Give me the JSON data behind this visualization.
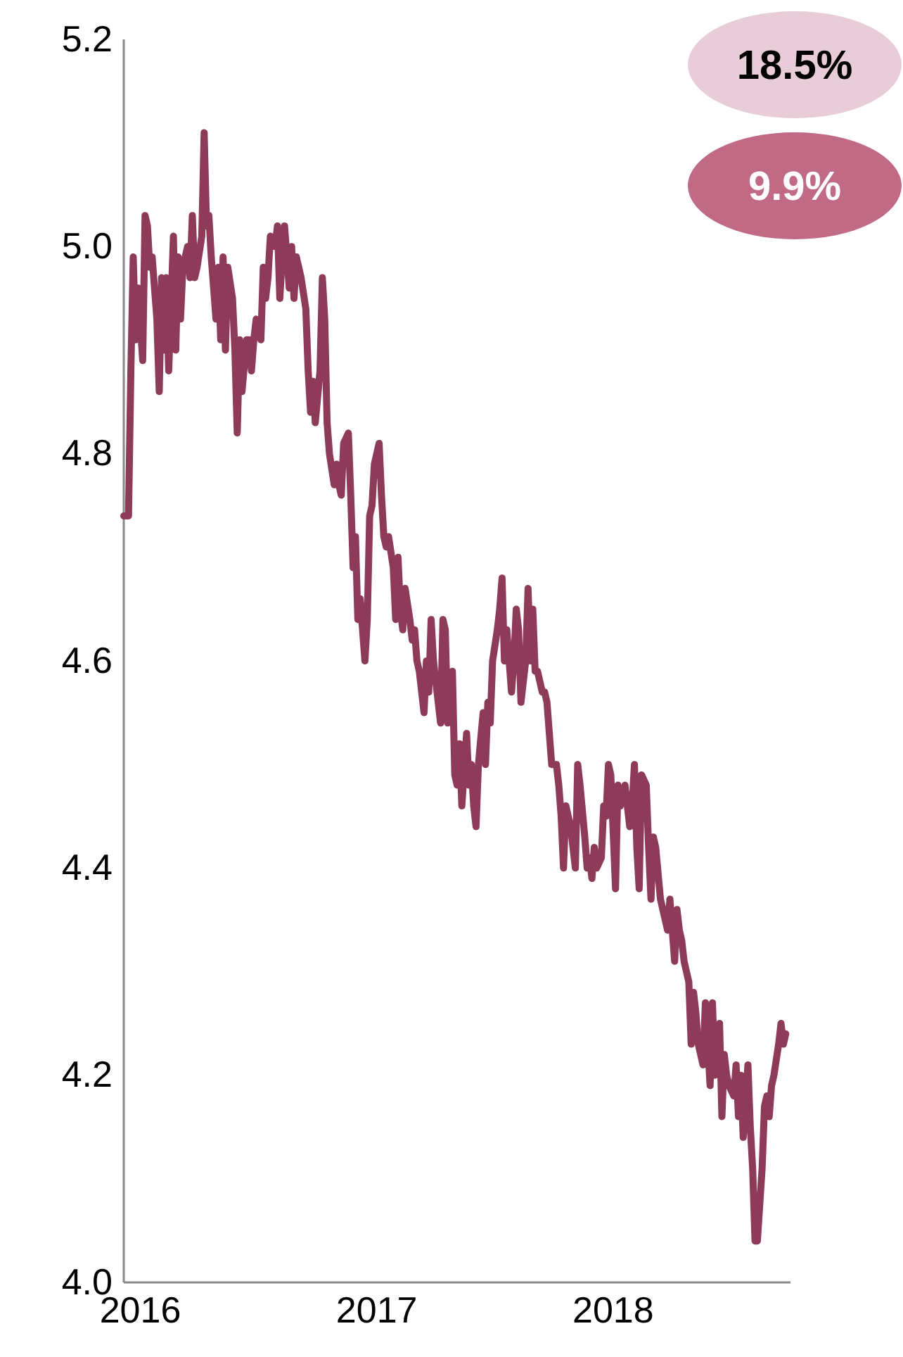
{
  "chart_data": {
    "type": "line",
    "xlim": [
      2015.93,
      2018.75
    ],
    "xticks": [
      2016,
      2017,
      2018
    ],
    "ylim": [
      4.0,
      5.2
    ],
    "yticks": [
      {
        "value": 4.0,
        "label": "4.0"
      },
      {
        "value": 4.2,
        "label": "4.2"
      },
      {
        "value": 4.4,
        "label": "4.4"
      },
      {
        "value": 4.6,
        "label": "4.6"
      },
      {
        "value": 4.8,
        "label": "4.8"
      },
      {
        "value": 5.0,
        "label": "5.0"
      },
      {
        "value": 5.2,
        "label": "5.2"
      }
    ],
    "grid": false,
    "marker": "none",
    "line_style": "solid",
    "annotations": [
      "18.5%",
      "9.9%"
    ],
    "series": [
      {
        "color": "#8e3b5a",
        "x": [
          2015.93,
          2015.95,
          2015.96,
          2015.97,
          2015.98,
          2015.99,
          2016.01,
          2016.02,
          2016.03,
          2016.04,
          2016.05,
          2016.07,
          2016.08,
          2016.09,
          2016.1,
          2016.11,
          2016.12,
          2016.14,
          2016.15,
          2016.16,
          2016.17,
          2016.18,
          2016.2,
          2016.21,
          2016.22,
          2016.23,
          2016.24,
          2016.26,
          2016.27,
          2016.28,
          2016.29,
          2016.3,
          2016.32,
          2016.33,
          2016.34,
          2016.35,
          2016.36,
          2016.37,
          2016.39,
          2016.4,
          2016.41,
          2016.42,
          2016.43,
          2016.45,
          2016.46,
          2016.47,
          2016.48,
          2016.49,
          2016.51,
          2016.52,
          2016.53,
          2016.54,
          2016.55,
          2016.57,
          2016.58,
          2016.59,
          2016.6,
          2016.61,
          2016.63,
          2016.64,
          2016.65,
          2016.66,
          2016.67,
          2016.68,
          2016.7,
          2016.71,
          2016.72,
          2016.73,
          2016.74,
          2016.76,
          2016.77,
          2016.78,
          2016.79,
          2016.8,
          2016.82,
          2016.83,
          2016.84,
          2016.85,
          2016.86,
          2016.88,
          2016.89,
          2016.9,
          2016.91,
          2016.92,
          2016.93,
          2016.95,
          2016.96,
          2016.97,
          2016.98,
          2016.99,
          2017.01,
          2017.02,
          2017.03,
          2017.04,
          2017.05,
          2017.07,
          2017.08,
          2017.09,
          2017.1,
          2017.11,
          2017.12,
          2017.14,
          2017.15,
          2017.16,
          2017.17,
          2017.18,
          2017.2,
          2017.21,
          2017.22,
          2017.23,
          2017.24,
          2017.26,
          2017.27,
          2017.28,
          2017.29,
          2017.3,
          2017.32,
          2017.33,
          2017.34,
          2017.35,
          2017.36,
          2017.38,
          2017.39,
          2017.4,
          2017.41,
          2017.42,
          2017.43,
          2017.45,
          2017.46,
          2017.47,
          2017.48,
          2017.49,
          2017.51,
          2017.52,
          2017.53,
          2017.54,
          2017.55,
          2017.57,
          2017.58,
          2017.59,
          2017.6,
          2017.61,
          2017.63,
          2017.64,
          2017.65,
          2017.66,
          2017.67,
          2017.68,
          2017.7,
          2017.71,
          2017.72,
          2017.73,
          2017.74,
          2017.76,
          2017.77,
          2017.78,
          2017.79,
          2017.8,
          2017.82,
          2017.83,
          2017.84,
          2017.85,
          2017.86,
          2017.88,
          2017.89,
          2017.9,
          2017.91,
          2017.92,
          2017.93,
          2017.95,
          2017.96,
          2017.97,
          2017.98,
          2017.99,
          2018.01,
          2018.02,
          2018.03,
          2018.04,
          2018.05,
          2018.07,
          2018.08,
          2018.09,
          2018.1,
          2018.11,
          2018.12,
          2018.14,
          2018.15,
          2018.16,
          2018.17,
          2018.18,
          2018.2,
          2018.21,
          2018.22,
          2018.23,
          2018.24,
          2018.26,
          2018.27,
          2018.28,
          2018.29,
          2018.3,
          2018.32,
          2018.33,
          2018.34,
          2018.35,
          2018.36,
          2018.38,
          2018.39,
          2018.4,
          2018.41,
          2018.42,
          2018.43,
          2018.45,
          2018.46,
          2018.47,
          2018.48,
          2018.49,
          2018.51,
          2018.52,
          2018.53,
          2018.54,
          2018.55,
          2018.57,
          2018.58,
          2018.59,
          2018.6,
          2018.61,
          2018.63,
          2018.64,
          2018.65,
          2018.66,
          2018.67,
          2018.68,
          2018.7,
          2018.71,
          2018.72,
          2018.73
        ],
        "values": [
          4.74,
          4.74,
          4.88,
          4.99,
          4.91,
          4.96,
          4.89,
          5.03,
          5.02,
          4.98,
          4.99,
          4.93,
          4.86,
          4.97,
          4.9,
          4.97,
          4.88,
          5.01,
          4.9,
          4.99,
          4.93,
          4.98,
          5.0,
          4.97,
          5.03,
          4.97,
          4.98,
          5.01,
          5.11,
          5.02,
          5.03,
          4.99,
          4.93,
          4.98,
          4.91,
          4.99,
          4.9,
          4.98,
          4.95,
          4.9,
          4.82,
          4.91,
          4.86,
          4.91,
          4.91,
          4.88,
          4.91,
          4.93,
          4.91,
          4.98,
          4.95,
          4.97,
          5.01,
          5.0,
          5.02,
          4.95,
          4.99,
          5.02,
          4.96,
          5.0,
          4.95,
          4.99,
          4.98,
          4.97,
          4.94,
          4.88,
          4.84,
          4.87,
          4.83,
          4.88,
          4.97,
          4.93,
          4.83,
          4.8,
          4.77,
          4.79,
          4.77,
          4.76,
          4.81,
          4.82,
          4.76,
          4.69,
          4.72,
          4.64,
          4.66,
          4.6,
          4.64,
          4.74,
          4.75,
          4.79,
          4.81,
          4.76,
          4.72,
          4.71,
          4.72,
          4.69,
          4.64,
          4.7,
          4.65,
          4.63,
          4.67,
          4.64,
          4.62,
          4.63,
          4.6,
          4.59,
          4.55,
          4.6,
          4.57,
          4.64,
          4.6,
          4.56,
          4.54,
          4.64,
          4.63,
          4.54,
          4.59,
          4.49,
          4.48,
          4.52,
          4.46,
          4.53,
          4.48,
          4.5,
          4.46,
          4.44,
          4.5,
          4.55,
          4.5,
          4.56,
          4.54,
          4.6,
          4.63,
          4.65,
          4.68,
          4.6,
          4.63,
          4.57,
          4.6,
          4.65,
          4.63,
          4.56,
          4.6,
          4.67,
          4.6,
          4.65,
          4.59,
          4.59,
          4.57,
          4.57,
          4.56,
          4.53,
          4.5,
          4.5,
          4.48,
          4.45,
          4.4,
          4.46,
          4.44,
          4.42,
          4.4,
          4.5,
          4.48,
          4.43,
          4.4,
          4.41,
          4.39,
          4.42,
          4.4,
          4.41,
          4.46,
          4.45,
          4.5,
          4.49,
          4.38,
          4.48,
          4.46,
          4.47,
          4.48,
          4.44,
          4.46,
          4.5,
          4.42,
          4.38,
          4.49,
          4.48,
          4.42,
          4.37,
          4.43,
          4.42,
          4.37,
          4.36,
          4.35,
          4.34,
          4.37,
          4.31,
          4.36,
          4.34,
          4.33,
          4.31,
          4.29,
          4.23,
          4.28,
          4.26,
          4.23,
          4.21,
          4.27,
          4.23,
          4.19,
          4.27,
          4.2,
          4.25,
          4.16,
          4.22,
          4.2,
          4.19,
          4.18,
          4.21,
          4.16,
          4.2,
          4.14,
          4.21,
          4.15,
          4.11,
          4.04,
          4.04,
          4.11,
          4.17,
          4.18,
          4.16,
          4.19,
          4.2,
          4.23,
          4.25,
          4.23,
          4.24
        ]
      }
    ]
  }
}
